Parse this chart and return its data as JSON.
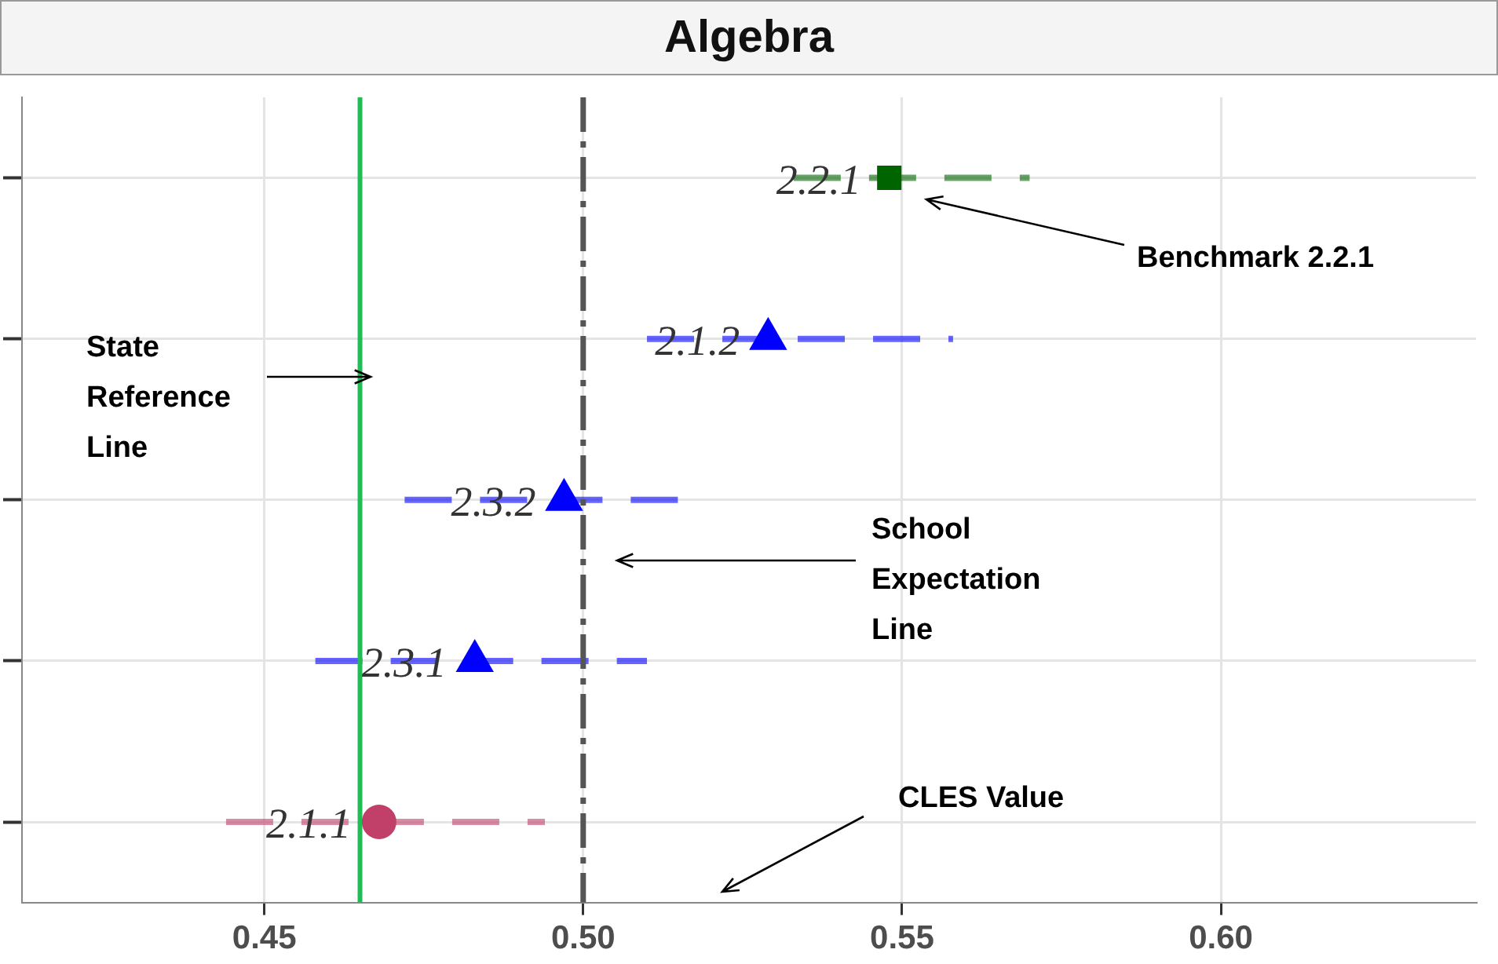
{
  "chart_data": {
    "type": "scatter",
    "title": "Algebra",
    "orientation": "horizontal",
    "categories": [
      "2.2.1",
      "2.1.2",
      "2.3.2",
      "2.3.1",
      "2.1.1"
    ],
    "series": [
      {
        "color": "#006400",
        "marker": "square",
        "values": [
          0.548,
          null,
          null,
          null,
          null
        ],
        "errors": [
          [
            0.533,
            0.57
          ],
          null,
          null,
          null,
          null
        ]
      },
      {
        "color": "#0000ff",
        "marker": "triangle",
        "values": [
          null,
          0.529,
          0.497,
          0.483,
          null
        ],
        "errors": [
          null,
          [
            0.51,
            0.558
          ],
          [
            0.472,
            0.518
          ],
          [
            0.458,
            0.51
          ],
          null
        ]
      },
      {
        "color": "#c0406a",
        "marker": "circle",
        "values": [
          null,
          null,
          null,
          null,
          0.468
        ],
        "errors": [
          null,
          null,
          null,
          null,
          [
            0.444,
            0.494
          ]
        ]
      }
    ],
    "xlim": [
      0.412,
      0.64
    ],
    "xticks": [
      0.45,
      {
        "value": 0.5,
        "label": "0.50"
      },
      0.55,
      {
        "value": 0.6,
        "label": "0.60"
      }
    ],
    "ref_lines": [
      {
        "axis": "x",
        "value": 0.465,
        "color": "#22bb55",
        "line_style": "solid"
      },
      {
        "axis": "x",
        "value": 0.5,
        "color": "#555555",
        "line_style": "dashed"
      }
    ],
    "annotations": [
      "Benchmark 2.2.1",
      "State Reference Line",
      "School Expectation Line",
      "CLES Value"
    ],
    "grid": true,
    "tick_labels": "x",
    "legend": false
  }
}
